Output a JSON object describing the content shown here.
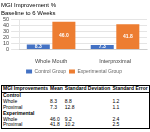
{
  "chart_data": {
    "type": "bar",
    "title": "MGI Improvement %",
    "subtitle": "Baseline to 6 Weeks",
    "categories": [
      "Whole Mouth",
      "Interproximal"
    ],
    "series": [
      {
        "name": "Control Group",
        "color": "#4472C4",
        "values": [
          8.3,
          7.3
        ],
        "value_labels": [
          "8.3",
          "7.3"
        ]
      },
      {
        "name": "Experimental Group",
        "color": "#ED7D31",
        "values": [
          46.0,
          41.8
        ],
        "value_labels": [
          "46.0",
          "41.8"
        ]
      }
    ],
    "ylim": [
      0,
      50
    ],
    "yticks": [
      0,
      10,
      20,
      30,
      40,
      50
    ],
    "grid": true,
    "legend": "bottom",
    "data_labels": true,
    "table": {
      "headers": [
        "MGI Improvements",
        "Mean",
        "Standard Deviation",
        "Standard Error"
      ],
      "groups": [
        {
          "name": "Control",
          "rows": [
            [
              "Whole",
              "8.3",
              "8.8",
              "1.2"
            ],
            [
              "Proximal",
              "7.3",
              "12.8",
              "1.1"
            ]
          ]
        },
        {
          "name": "Experimental",
          "rows": [
            [
              "Whole",
              "46.0",
              "9.2",
              "2.4"
            ],
            [
              "Proximal",
              "41.8",
              "10.2",
              "2.5"
            ]
          ]
        }
      ]
    }
  }
}
